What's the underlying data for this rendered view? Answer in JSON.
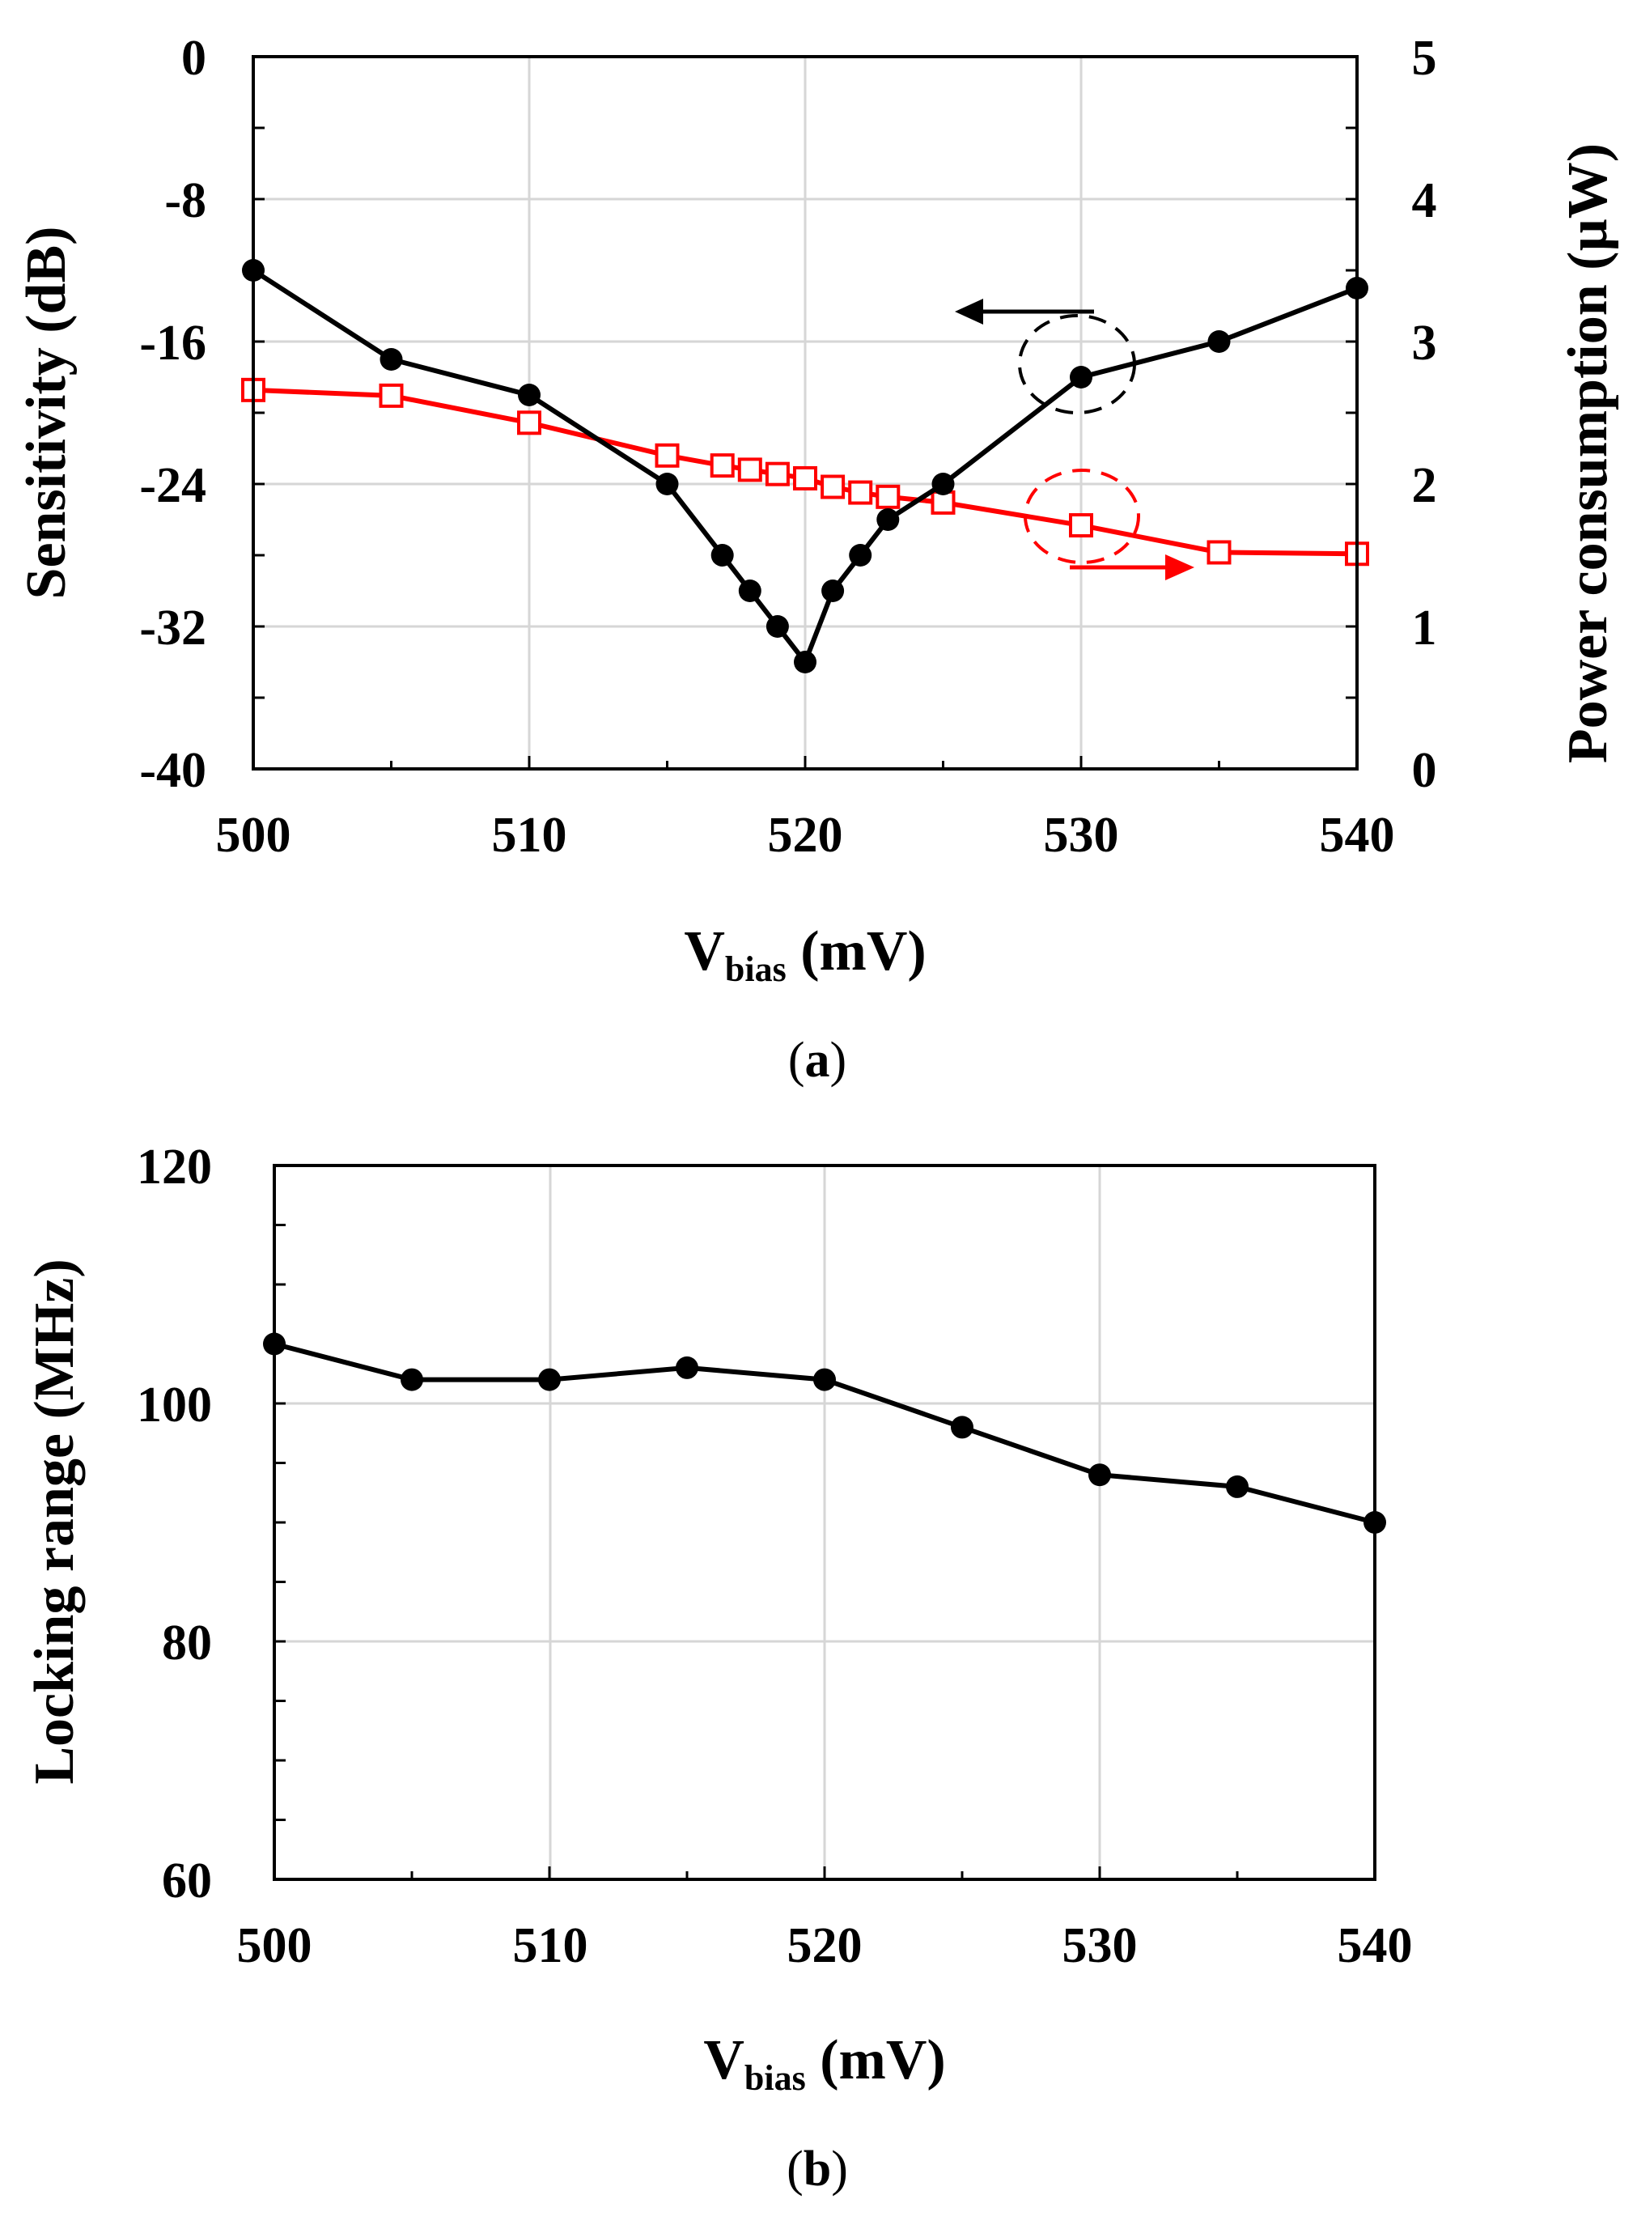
{
  "chart_data": [
    {
      "type": "line",
      "panel": "a",
      "caption_open": "(",
      "caption_letter": "a",
      "caption_close": ")",
      "xlabel_main": "V",
      "xlabel_sub": "bias",
      "xlabel_unit": " (mV)",
      "ylabel": "Sensitivity (dB)",
      "y2label": "Power consumption (µW)",
      "xlim": [
        500,
        540
      ],
      "ylim": [
        -40,
        0
      ],
      "y2lim": [
        0,
        5
      ],
      "xticks": [
        "500",
        "510",
        "520",
        "530",
        "540"
      ],
      "yticks": [
        "0",
        "-8",
        "-16",
        "-24",
        "-32",
        "-40"
      ],
      "y2ticks": [
        "5",
        "4",
        "3",
        "2",
        "1",
        "0"
      ],
      "grid": true,
      "series": [
        {
          "name": "Sensitivity",
          "axis": "left",
          "color": "#000000",
          "marker": "filled-circle",
          "x": [
            500,
            505,
            510,
            515,
            517,
            518,
            519,
            520,
            521,
            522,
            523,
            525,
            530,
            535,
            540
          ],
          "y": [
            -12,
            -17,
            -19,
            -24,
            -28,
            -30,
            -32,
            -34,
            -30,
            -28,
            -26,
            -24,
            -18,
            -16,
            -13
          ]
        },
        {
          "name": "Power consumption",
          "axis": "right",
          "color": "#ff0000",
          "marker": "open-square",
          "x": [
            500,
            505,
            510,
            515,
            517,
            518,
            519,
            520,
            521,
            522,
            523,
            525,
            530,
            535,
            540
          ],
          "y": [
            2.66,
            2.62,
            2.43,
            2.2,
            2.13,
            2.1,
            2.07,
            2.04,
            1.98,
            1.94,
            1.91,
            1.87,
            1.71,
            1.52,
            1.51
          ]
        }
      ],
      "annotations": [
        {
          "type": "dashed-ellipse",
          "series": "Sensitivity",
          "x": 530,
          "color": "#000000",
          "arrow": "left"
        },
        {
          "type": "dashed-ellipse",
          "series": "Power consumption",
          "x": 530,
          "color": "#ff0000",
          "arrow": "right"
        }
      ]
    },
    {
      "type": "line",
      "panel": "b",
      "caption_open": "(",
      "caption_letter": "b",
      "caption_close": ")",
      "xlabel_main": "V",
      "xlabel_sub": "bias",
      "xlabel_unit": " (mV)",
      "ylabel": "Locking range (MHz)",
      "xlim": [
        500,
        540
      ],
      "ylim": [
        60,
        120
      ],
      "xticks": [
        "500",
        "510",
        "520",
        "530",
        "540"
      ],
      "yticks": [
        "120",
        "100",
        "80",
        "60"
      ],
      "grid": true,
      "series": [
        {
          "name": "Locking range",
          "color": "#000000",
          "marker": "filled-circle",
          "x": [
            500,
            505,
            510,
            515,
            520,
            525,
            530,
            535,
            540
          ],
          "y": [
            105,
            102,
            102,
            103,
            102,
            98,
            94,
            93,
            90
          ]
        }
      ]
    }
  ]
}
